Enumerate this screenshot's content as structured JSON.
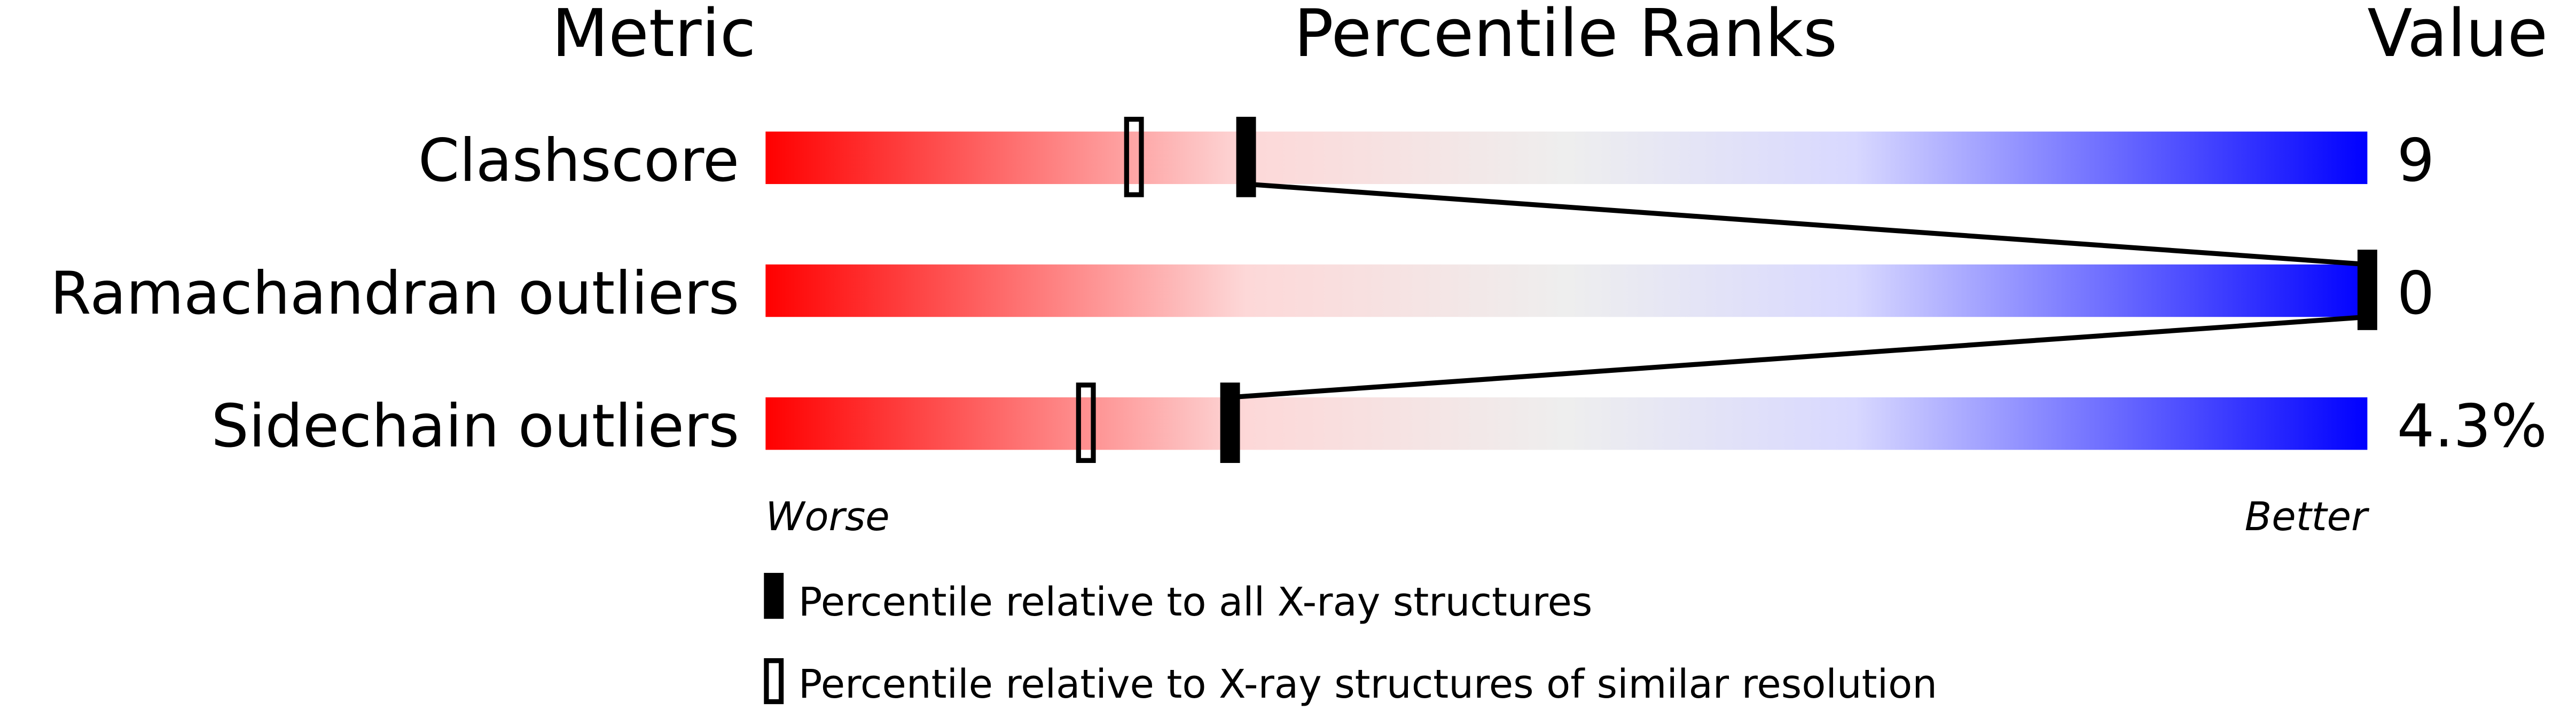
{
  "chart_data": {
    "type": "percentile-slider",
    "headers": {
      "metric": "Metric",
      "ranks": "Percentile Ranks",
      "value": "Value"
    },
    "xlim": [
      0,
      100
    ],
    "metrics": [
      {
        "name": "Clashscore",
        "value": "9",
        "percentile_all": 30,
        "percentile_similar": 23
      },
      {
        "name": "Ramachandran outliers",
        "value": "0",
        "percentile_all": 100,
        "percentile_similar": null
      },
      {
        "name": "Sidechain outliers",
        "value": "4.3%",
        "percentile_all": 29,
        "percentile_similar": 20
      }
    ],
    "axis_ends": {
      "left": "Worse",
      "right": "Better"
    },
    "legend": {
      "all": "Percentile relative to all X-ray structures",
      "similar": "Percentile relative to X-ray structures of similar resolution"
    },
    "gradient_colors": [
      "#ff0000",
      "#fdd8d8",
      "#eeeeee",
      "#d8d8ff",
      "#0000ff"
    ]
  }
}
